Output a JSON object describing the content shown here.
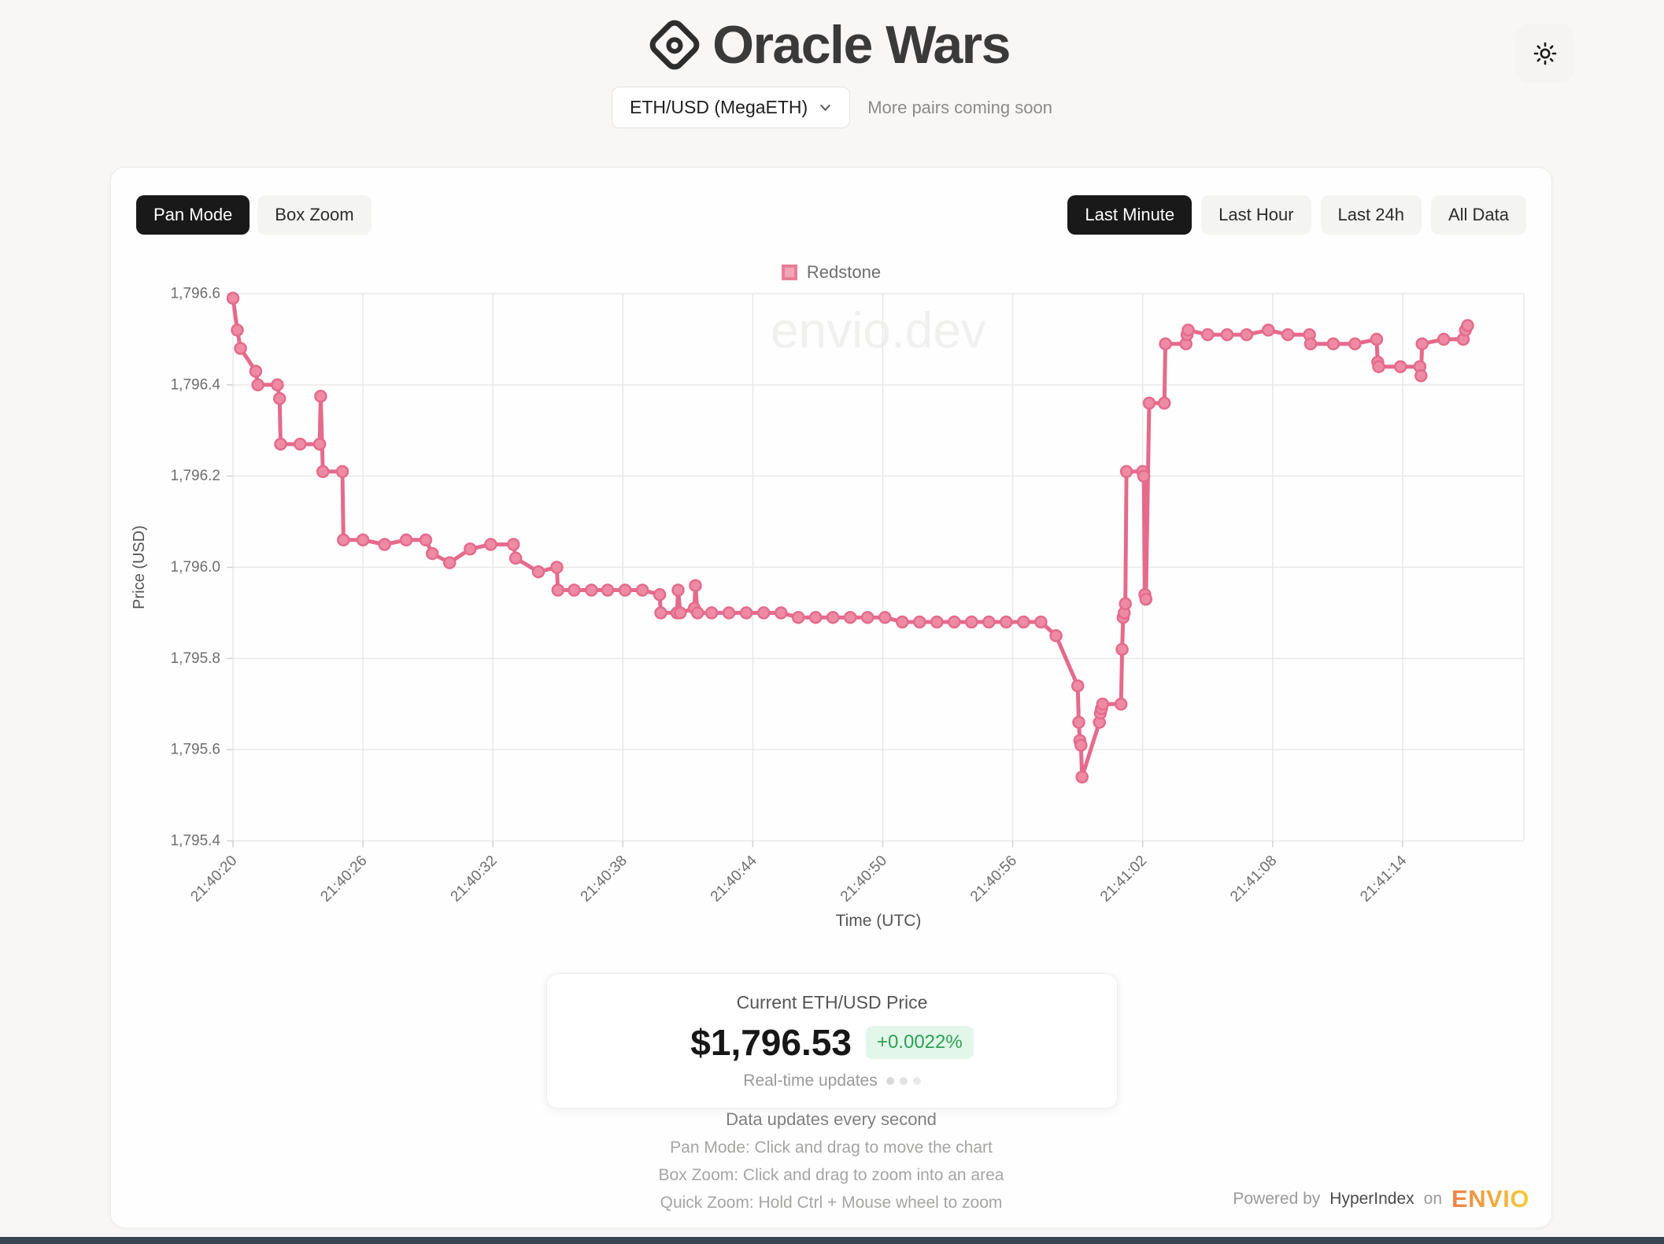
{
  "app": {
    "title": "Oracle Wars"
  },
  "theme_toggle": {
    "icon": "sun"
  },
  "pair_selector": {
    "value": "ETH/USD (MegaETH)",
    "note": "More pairs coming soon"
  },
  "toolbar": {
    "pan_mode_label": "Pan Mode",
    "box_zoom_label": "Box Zoom"
  },
  "ranges": [
    {
      "label": "Last Minute",
      "active": true
    },
    {
      "label": "Last Hour",
      "active": false
    },
    {
      "label": "Last 24h",
      "active": false
    },
    {
      "label": "All Data",
      "active": false
    }
  ],
  "chart_data": {
    "type": "line",
    "legend_position": "top",
    "watermark": "envio.dev",
    "xlabel": "Time (UTC)",
    "ylabel": "Price (USD)",
    "ylim": [
      1795.4,
      1796.6
    ],
    "x_range_seconds": [
      0,
      59.6
    ],
    "grid": true,
    "y_ticks": [
      {
        "label": "1,796.6",
        "value": 1796.6
      },
      {
        "label": "1,796.4",
        "value": 1796.4
      },
      {
        "label": "1,796.2",
        "value": 1796.2
      },
      {
        "label": "1,796.0",
        "value": 1796.0
      },
      {
        "label": "1,795.8",
        "value": 1795.8
      },
      {
        "label": "1,795.6",
        "value": 1795.6
      },
      {
        "label": "1,795.4",
        "value": 1795.4
      }
    ],
    "x_ticks": [
      {
        "label": "21:40:20",
        "s": 0
      },
      {
        "label": "21:40:26",
        "s": 6
      },
      {
        "label": "21:40:32",
        "s": 12
      },
      {
        "label": "21:40:38",
        "s": 18
      },
      {
        "label": "21:40:44",
        "s": 24
      },
      {
        "label": "21:40:50",
        "s": 30
      },
      {
        "label": "21:40:56",
        "s": 36
      },
      {
        "label": "21:41:02",
        "s": 42
      },
      {
        "label": "21:41:08",
        "s": 48
      },
      {
        "label": "21:41:14",
        "s": 54
      }
    ],
    "series": [
      {
        "name": "Redstone",
        "color": "#e56a8b",
        "marker_fill": "#ee8ba4",
        "points": [
          [
            0.0,
            1796.59
          ],
          [
            0.2,
            1796.52
          ],
          [
            0.35,
            1796.48
          ],
          [
            1.05,
            1796.43
          ],
          [
            1.15,
            1796.4
          ],
          [
            2.05,
            1796.4
          ],
          [
            2.15,
            1796.37
          ],
          [
            2.2,
            1796.27
          ],
          [
            3.1,
            1796.27
          ],
          [
            4.0,
            1796.27
          ],
          [
            4.05,
            1796.375
          ],
          [
            4.15,
            1796.21
          ],
          [
            5.05,
            1796.21
          ],
          [
            5.1,
            1796.06
          ],
          [
            6.0,
            1796.06
          ],
          [
            7.0,
            1796.05
          ],
          [
            8.0,
            1796.06
          ],
          [
            8.9,
            1796.06
          ],
          [
            9.2,
            1796.03
          ],
          [
            10.0,
            1796.01
          ],
          [
            10.95,
            1796.04
          ],
          [
            11.9,
            1796.05
          ],
          [
            12.95,
            1796.05
          ],
          [
            13.05,
            1796.02
          ],
          [
            14.1,
            1795.99
          ],
          [
            14.95,
            1796.0
          ],
          [
            15.0,
            1795.95
          ],
          [
            15.75,
            1795.95
          ],
          [
            16.55,
            1795.95
          ],
          [
            17.3,
            1795.95
          ],
          [
            18.1,
            1795.95
          ],
          [
            18.9,
            1795.95
          ],
          [
            19.7,
            1795.94
          ],
          [
            19.75,
            1795.9
          ],
          [
            20.5,
            1795.9
          ],
          [
            20.55,
            1795.95
          ],
          [
            20.65,
            1795.9
          ],
          [
            21.3,
            1795.91
          ],
          [
            21.35,
            1795.96
          ],
          [
            21.45,
            1795.9
          ],
          [
            22.1,
            1795.9
          ],
          [
            22.9,
            1795.9
          ],
          [
            23.7,
            1795.9
          ],
          [
            24.5,
            1795.9
          ],
          [
            25.3,
            1795.9
          ],
          [
            26.1,
            1795.89
          ],
          [
            26.9,
            1795.89
          ],
          [
            27.7,
            1795.89
          ],
          [
            28.5,
            1795.89
          ],
          [
            29.3,
            1795.89
          ],
          [
            30.1,
            1795.89
          ],
          [
            30.9,
            1795.88
          ],
          [
            31.7,
            1795.88
          ],
          [
            32.5,
            1795.88
          ],
          [
            33.3,
            1795.88
          ],
          [
            34.1,
            1795.88
          ],
          [
            34.9,
            1795.88
          ],
          [
            35.7,
            1795.88
          ],
          [
            36.5,
            1795.88
          ],
          [
            37.3,
            1795.88
          ],
          [
            38.0,
            1795.85
          ],
          [
            39.0,
            1795.74
          ],
          [
            39.05,
            1795.66
          ],
          [
            39.1,
            1795.62
          ],
          [
            39.15,
            1795.61
          ],
          [
            39.2,
            1795.54
          ],
          [
            40.0,
            1795.66
          ],
          [
            40.05,
            1795.68
          ],
          [
            40.1,
            1795.69
          ],
          [
            40.15,
            1795.7
          ],
          [
            41.0,
            1795.7
          ],
          [
            41.05,
            1795.82
          ],
          [
            41.1,
            1795.89
          ],
          [
            41.15,
            1795.9
          ],
          [
            41.2,
            1795.92
          ],
          [
            41.25,
            1796.21
          ],
          [
            42.0,
            1796.21
          ],
          [
            42.05,
            1796.2
          ],
          [
            42.1,
            1795.94
          ],
          [
            42.15,
            1795.93
          ],
          [
            42.3,
            1796.36
          ],
          [
            43.0,
            1796.36
          ],
          [
            43.05,
            1796.49
          ],
          [
            44.0,
            1796.49
          ],
          [
            44.05,
            1796.51
          ],
          [
            44.1,
            1796.52
          ],
          [
            45.0,
            1796.51
          ],
          [
            45.9,
            1796.51
          ],
          [
            46.8,
            1796.51
          ],
          [
            47.8,
            1796.52
          ],
          [
            48.7,
            1796.51
          ],
          [
            49.7,
            1796.51
          ],
          [
            49.75,
            1796.49
          ],
          [
            50.8,
            1796.49
          ],
          [
            51.8,
            1796.49
          ],
          [
            52.8,
            1796.5
          ],
          [
            52.85,
            1796.45
          ],
          [
            52.9,
            1796.44
          ],
          [
            53.9,
            1796.44
          ],
          [
            54.8,
            1796.44
          ],
          [
            54.85,
            1796.42
          ],
          [
            54.9,
            1796.49
          ],
          [
            55.9,
            1796.5
          ],
          [
            56.8,
            1796.5
          ],
          [
            56.9,
            1796.52
          ],
          [
            57.0,
            1796.53
          ]
        ]
      }
    ]
  },
  "price_card": {
    "title": "Current ETH/USD Price",
    "price": "$1,796.53",
    "change": "+0.0022%",
    "updates_label": "Real-time updates"
  },
  "help": {
    "line1": "Data updates every second",
    "line2": "Pan Mode: Click and drag to move the chart",
    "line3": "Box Zoom: Click and drag to zoom into an area",
    "line4": "Quick Zoom: Hold Ctrl + Mouse wheel to zoom"
  },
  "footer": {
    "powered_by": "Powered by",
    "indexer": "HyperIndex",
    "on": "on",
    "brand": "ENVIO"
  }
}
